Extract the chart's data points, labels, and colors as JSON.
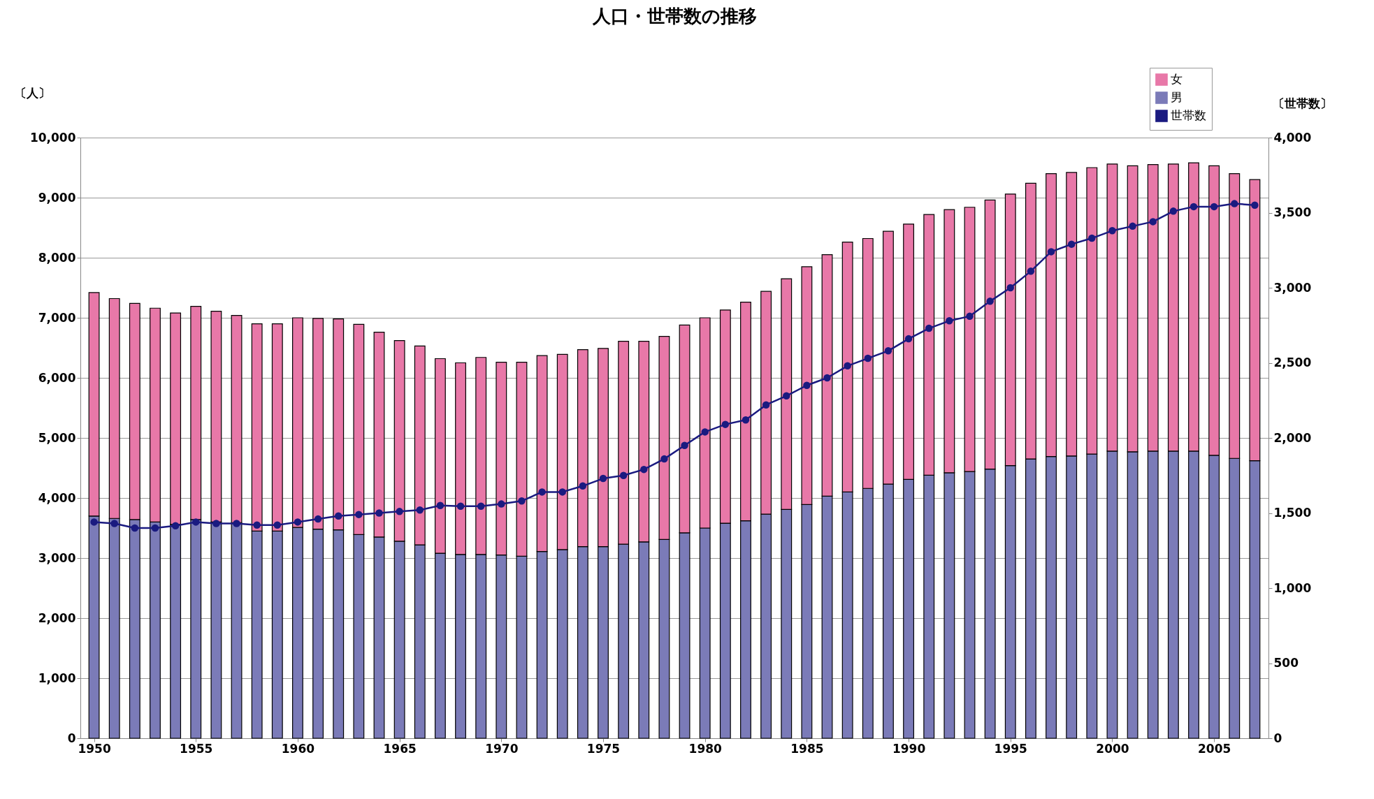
{
  "chart_data": {
    "type": "bar",
    "title": "人口・世帯数の推移",
    "ylabel": "〔人〕",
    "y2label": "〔世帯数〕",
    "x": [
      1950,
      1951,
      1952,
      1953,
      1954,
      1955,
      1956,
      1957,
      1958,
      1959,
      1960,
      1961,
      1962,
      1963,
      1964,
      1965,
      1966,
      1967,
      1968,
      1969,
      1970,
      1971,
      1972,
      1973,
      1974,
      1975,
      1976,
      1977,
      1978,
      1979,
      1980,
      1981,
      1982,
      1983,
      1984,
      1985,
      1986,
      1987,
      1988,
      1989,
      1990,
      1991,
      1992,
      1993,
      1994,
      1995,
      1996,
      1997,
      1998,
      1999,
      2000,
      2001,
      2002,
      2003,
      2004,
      2005,
      2006,
      2007
    ],
    "stacked": true,
    "series": [
      {
        "name": "男",
        "color": "#7b7bb8",
        "values": [
          3700,
          3660,
          3640,
          3600,
          3560,
          3640,
          3600,
          3590,
          3450,
          3450,
          3510,
          3480,
          3470,
          3390,
          3350,
          3280,
          3220,
          3080,
          3060,
          3060,
          3050,
          3030,
          3110,
          3140,
          3190,
          3190,
          3230,
          3270,
          3310,
          3420,
          3500,
          3580,
          3620,
          3730,
          3810,
          3890,
          4030,
          4100,
          4160,
          4230,
          4310,
          4380,
          4420,
          4440,
          4480,
          4540,
          4650,
          4690,
          4700,
          4730,
          4780,
          4770,
          4780,
          4780,
          4780,
          4710,
          4660,
          4620
        ]
      },
      {
        "name": "女",
        "color": "#e878a8",
        "values": [
          3720,
          3660,
          3600,
          3560,
          3520,
          3550,
          3510,
          3450,
          3450,
          3450,
          3490,
          3510,
          3510,
          3500,
          3410,
          3340,
          3310,
          3240,
          3190,
          3280,
          3210,
          3230,
          3260,
          3250,
          3280,
          3300,
          3380,
          3340,
          3380,
          3460,
          3500,
          3550,
          3640,
          3710,
          3840,
          3960,
          4020,
          4160,
          4160,
          4210,
          4250,
          4340,
          4380,
          4400,
          4480,
          4520,
          4590,
          4710,
          4720,
          4770,
          4780,
          4760,
          4770,
          4780,
          4800,
          4820,
          4740,
          4680
        ]
      },
      {
        "name": "世帯数",
        "type": "line",
        "axis": "y2",
        "color": "#1a1a80",
        "marker": "circle",
        "values": [
          1440,
          1430,
          1400,
          1400,
          1415,
          1440,
          1430,
          1430,
          1420,
          1420,
          1440,
          1460,
          1480,
          1490,
          1500,
          1510,
          1520,
          1550,
          1545,
          1545,
          1560,
          1580,
          1640,
          1640,
          1680,
          1730,
          1750,
          1790,
          1860,
          1950,
          2040,
          2090,
          2120,
          2220,
          2280,
          2350,
          2400,
          2480,
          2530,
          2580,
          2660,
          2730,
          2780,
          2810,
          2910,
          3000,
          3110,
          3240,
          3290,
          3330,
          3380,
          3410,
          3440,
          3510,
          3540,
          3540,
          3560,
          3550
        ]
      }
    ],
    "xlim": [
      1949.5,
      2007.5
    ],
    "xticks": [
      1950,
      1955,
      1960,
      1965,
      1970,
      1975,
      1980,
      1985,
      1990,
      1995,
      2000,
      2005
    ],
    "ylim": [
      0,
      10000
    ],
    "yticks": [
      0,
      {
        "value": 1000,
        "label": "1,000"
      },
      {
        "value": 2000,
        "label": "2,000"
      },
      {
        "value": 3000,
        "label": "3,000"
      },
      {
        "value": 4000,
        "label": "4,000"
      },
      {
        "value": 5000,
        "label": "5,000"
      },
      {
        "value": 6000,
        "label": "6,000"
      },
      {
        "value": 7000,
        "label": "7,000"
      },
      {
        "value": 8000,
        "label": "8,000"
      },
      {
        "value": 9000,
        "label": "9,000"
      },
      {
        "value": 10000,
        "label": "10,000"
      }
    ],
    "y2lim": [
      0,
      4000
    ],
    "y2ticks": [
      0,
      500,
      {
        "value": 1000,
        "label": "1,000"
      },
      {
        "value": 1500,
        "label": "1,500"
      },
      {
        "value": 2000,
        "label": "2,000"
      },
      {
        "value": 2500,
        "label": "2,500"
      },
      {
        "value": 3000,
        "label": "3,000"
      },
      {
        "value": 3500,
        "label": "3,500"
      },
      {
        "value": 4000,
        "label": "4,000"
      }
    ],
    "grid": "y",
    "legend": "top right"
  }
}
